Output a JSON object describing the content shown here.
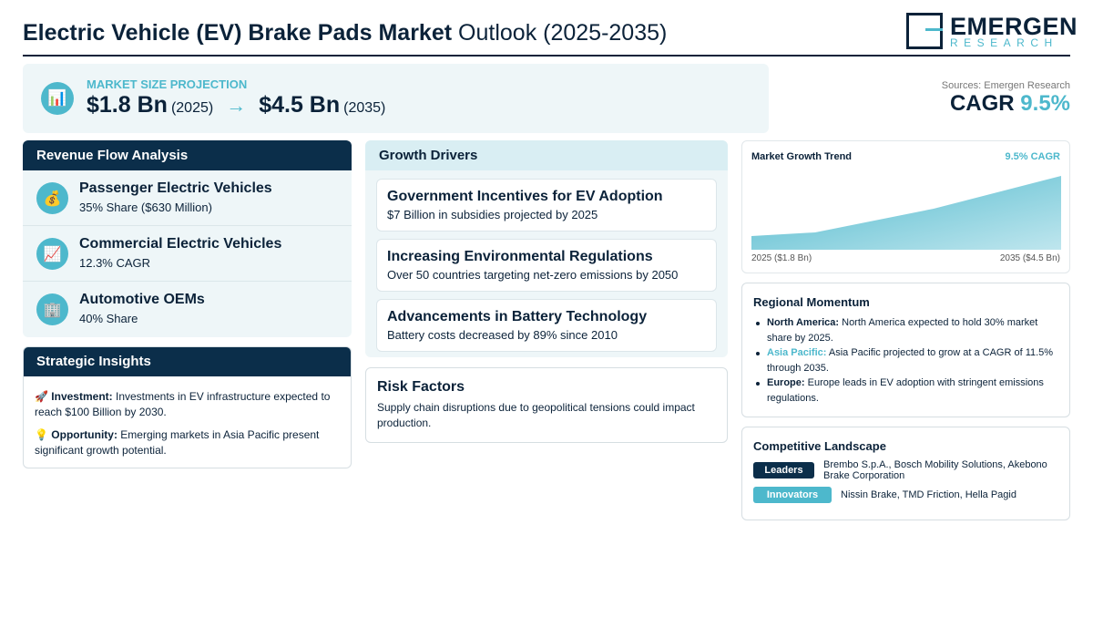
{
  "header": {
    "title_bold": "Electric Vehicle (EV) Brake Pads Market",
    "title_light": "Outlook (2025-2035)",
    "logo_main": "EMERGEN",
    "logo_sub": "RESEARCH"
  },
  "projection": {
    "icon": "bar-chart-icon",
    "label": "MARKET SIZE PROJECTION",
    "start_value": "$1.8 Bn",
    "start_year": "(2025)",
    "arrow": "→",
    "end_value": "$4.5 Bn",
    "end_year": "(2035)"
  },
  "sources": "Sources: Emergen Research",
  "cagr": {
    "label": "CAGR",
    "value": "9.5%"
  },
  "revenue_flow": {
    "title": "Revenue Flow Analysis",
    "items": [
      {
        "icon": "money-bag-icon",
        "glyph": "💰",
        "title": "Passenger Electric Vehicles",
        "subtitle": "35% Share ($630 Million)"
      },
      {
        "icon": "chart-increasing-icon",
        "glyph": "📈",
        "title": "Commercial Electric Vehicles",
        "subtitle": "12.3% CAGR"
      },
      {
        "icon": "office-building-icon",
        "glyph": "🏢",
        "title": "Automotive OEMs",
        "subtitle": "40% Share"
      }
    ]
  },
  "strategic_insights": {
    "title": "Strategic Insights",
    "items": [
      {
        "icon": "rocket-icon",
        "glyph": "🚀",
        "label": "Investment:",
        "text": "Investments in EV infrastructure expected to reach $100 Billion by 2030."
      },
      {
        "icon": "light-bulb-icon",
        "glyph": "💡",
        "label": "Opportunity:",
        "text": "Emerging markets in Asia Pacific present significant growth potential."
      }
    ]
  },
  "growth_drivers": {
    "title": "Growth Drivers",
    "items": [
      {
        "title": "Government Incentives for EV Adoption",
        "subtitle": "$7 Billion in subsidies projected by 2025"
      },
      {
        "title": "Increasing Environmental Regulations",
        "subtitle": "Over 50 countries targeting net-zero emissions by 2050"
      },
      {
        "title": "Advancements in Battery Technology",
        "subtitle": "Battery costs decreased by 89% since 2010"
      }
    ]
  },
  "risk_factors": {
    "title": "Risk Factors",
    "text": "Supply chain disruptions due to geopolitical tensions could impact production."
  },
  "market_trend": {
    "title": "Market Growth Trend",
    "cagr_label": "9.5% CAGR",
    "start_label": "2025 ($1.8 Bn)",
    "end_label": "2035 ($4.5 Bn)",
    "accent_color": "#4db8cc"
  },
  "regional": {
    "title": "Regional Momentum",
    "items": [
      {
        "region": "North America:",
        "text": "North America expected to hold 30% market share by 2025.",
        "highlight": false
      },
      {
        "region": "Asia Pacific:",
        "text": "Asia Pacific projected to grow at a CAGR of 11.5% through 2035.",
        "highlight": true
      },
      {
        "region": "Europe:",
        "text": "Europe leads in EV adoption with stringent emissions regulations.",
        "highlight": false
      }
    ]
  },
  "competitive": {
    "title": "Competitive Landscape",
    "leaders_label": "Leaders",
    "leaders": "Brembo S.p.A., Bosch Mobility Solutions, Akebono Brake Corporation",
    "innovators_label": "Innovators",
    "innovators": "Nissin Brake, TMD Friction, Hella Pagid"
  },
  "colors": {
    "navy": "#0b2e4a",
    "teal": "#4db8cc",
    "panel": "#eef6f8"
  }
}
